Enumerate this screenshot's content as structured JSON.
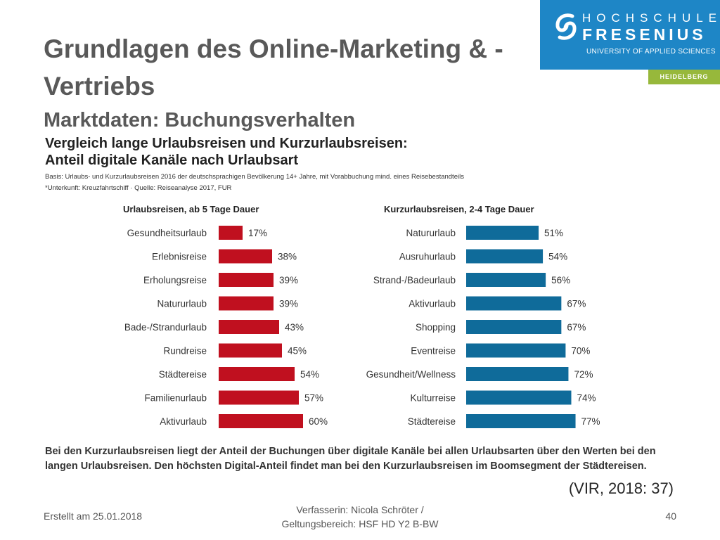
{
  "slide": {
    "title": "Grundlagen des Online-Marketing & -Vertriebs",
    "subtitle": "Marktdaten: Buchungsverhalten"
  },
  "logo": {
    "line1": "HOCHSCHULE",
    "line2": "FRESENIUS",
    "line3": "UNIVERSITY OF APPLIED SCIENCES",
    "campus": "HEIDELBERG",
    "colors": {
      "brand": "#1e86c6",
      "campus": "#97b83b"
    }
  },
  "chart_header": {
    "title_line1": "Vergleich lange Urlaubsreisen und Kurzurlaubsreisen:",
    "title_line2": "Anteil digitale Kanäle nach Urlaubsart",
    "basis": "Basis: Urlaubs- und Kurzurlaubsreisen 2016 der deutschsprachigen Bevölkerung 14+ Jahre, mit Vorabbuchung mind. eines Reisebestandteils",
    "footnote": "*Unterkunft: Kreuzfahrtschiff  ·  Quelle: Reiseanalyse 2017, FUR"
  },
  "chart_data": [
    {
      "type": "bar",
      "orientation": "horizontal",
      "title": "Urlaubsreisen, ab 5 Tage Dauer",
      "color": "#c0101f",
      "unit": "%",
      "categories": [
        "Gesundheitsurlaub",
        "Erlebnisreise",
        "Erholungsreise",
        "Natururlaub",
        "Bade-/Strandurlaub",
        "Rundreise",
        "Städtereise",
        "Familienurlaub",
        "Aktivurlaub"
      ],
      "values": [
        17,
        38,
        39,
        39,
        43,
        45,
        54,
        57,
        60
      ],
      "labels": [
        "17%",
        "38%",
        "39%",
        "39%",
        "43%",
        "45%",
        "54%",
        "57%",
        "60%"
      ],
      "grid": false
    },
    {
      "type": "bar",
      "orientation": "horizontal",
      "title": "Kurzurlaubsreisen, 2-4 Tage Dauer",
      "color": "#0f6b9a",
      "unit": "%",
      "categories": [
        "Natururlaub",
        "Ausruhurlaub",
        "Strand-/Badeurlaub",
        "Aktivurlaub",
        "Shopping",
        "Eventreise",
        "Gesundheit/Wellness",
        "Kulturreise",
        "Städtereise"
      ],
      "values": [
        51,
        54,
        56,
        67,
        67,
        70,
        72,
        74,
        77
      ],
      "labels": [
        "51%",
        "54%",
        "56%",
        "67%",
        "67%",
        "70%",
        "72%",
        "74%",
        "77%"
      ],
      "grid": false
    }
  ],
  "summary": "Bei den Kurzurlaubsreisen liegt der Anteil der Buchungen über digitale Kanäle bei allen Urlaubsarten über den Werten bei den langen Urlaubsreisen. Den höchsten Digital-Anteil findet man bei den Kurzurlaubsreisen im Boomsegment der Städtereisen.",
  "citation": "(VIR, 2018: 37)",
  "footer": {
    "created": "Erstellt am 25.01.2018",
    "author_line1": "Verfasserin: Nicola Schröter /",
    "author_line2": "Geltungsbereich:  HSF HD Y2 B-BW",
    "page_number": "40"
  }
}
